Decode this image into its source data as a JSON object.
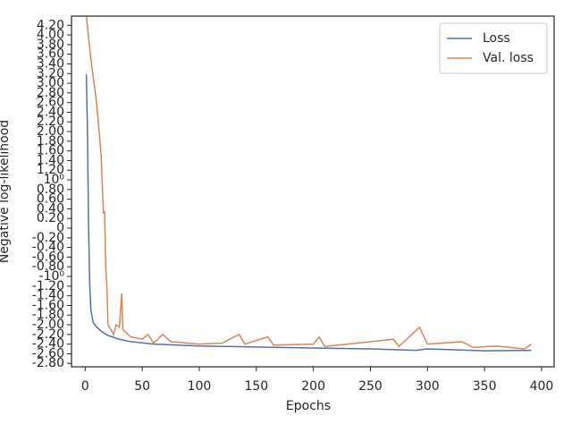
{
  "chart_data": {
    "type": "line",
    "xlabel": "Epochs",
    "ylabel": "Negative log-likelihood",
    "xlim": [
      -12,
      411
    ],
    "xticks": [
      0,
      50,
      100,
      150,
      200,
      250,
      300,
      350,
      400
    ],
    "ylim": [
      -2.87,
      4.39
    ],
    "yticks": [
      {
        "value": -2.8,
        "label": "-2.80"
      },
      {
        "value": -2.6,
        "label": "-2.60"
      },
      {
        "value": -2.4,
        "label": "-2.40"
      },
      {
        "value": -2.2,
        "label": "-2.20"
      },
      {
        "value": -2,
        "label": "-2.00"
      },
      {
        "value": -1.8,
        "label": "-1.80"
      },
      {
        "value": -1.6,
        "label": "-1.60"
      },
      {
        "value": -1.4,
        "label": "-1.40"
      },
      {
        "value": -1.2,
        "label": "-1.20"
      },
      {
        "value": -1,
        "label": "-10⁰"
      },
      {
        "value": -0.8,
        "label": "-0.80"
      },
      {
        "value": -0.6,
        "label": "-0.60"
      },
      {
        "value": -0.4,
        "label": "-0.40"
      },
      {
        "value": -0.2,
        "label": "-0.20"
      },
      0,
      {
        "value": 0.2,
        "label": "0.20"
      },
      {
        "value": 0.4,
        "label": "0.40"
      },
      {
        "value": 0.6,
        "label": "0.60"
      },
      {
        "value": 0.8,
        "label": "0.80"
      },
      {
        "value": 1,
        "label": "10⁰"
      },
      {
        "value": 1.2,
        "label": "1.20"
      },
      {
        "value": 1.4,
        "label": "1.40"
      },
      {
        "value": 1.6,
        "label": "1.60"
      },
      {
        "value": 1.8,
        "label": "1.80"
      },
      {
        "value": 2,
        "label": "2.00"
      },
      {
        "value": 2.2,
        "label": "2.20"
      },
      {
        "value": 2.4,
        "label": "2.40"
      },
      {
        "value": 2.6,
        "label": "2.60"
      },
      {
        "value": 2.8,
        "label": "2.80"
      },
      {
        "value": 3,
        "label": "3.00"
      },
      {
        "value": 3.2,
        "label": "3.20"
      },
      {
        "value": 3.4,
        "label": "3.40"
      },
      {
        "value": 3.6,
        "label": "3.60"
      },
      {
        "value": 3.8,
        "label": "3.80"
      },
      {
        "value": 4,
        "label": "4.00"
      },
      {
        "value": 4.2,
        "label": "4.20"
      }
    ],
    "legend": "upper right",
    "grid": false,
    "series": [
      {
        "name": "Loss",
        "color": "#4c72b0",
        "x": [
          1,
          2,
          3,
          4,
          5,
          7,
          10,
          15,
          20,
          30,
          40,
          60,
          100,
          150,
          200,
          250,
          290,
          300,
          350,
          391
        ],
        "values": [
          3.19,
          2.0,
          0.0,
          -1.2,
          -1.7,
          -1.95,
          -2.05,
          -2.15,
          -2.22,
          -2.3,
          -2.35,
          -2.4,
          -2.44,
          -2.46,
          -2.48,
          -2.5,
          -2.53,
          -2.5,
          -2.54,
          -2.53
        ]
      },
      {
        "name": "Val. loss",
        "color": "#dd8452",
        "x": [
          1,
          5,
          10,
          14,
          16,
          17,
          18,
          19,
          20,
          25,
          27,
          30,
          32,
          33,
          40,
          50,
          55,
          60,
          68,
          75,
          100,
          120,
          135,
          140,
          160,
          165,
          200,
          205,
          210,
          270,
          275,
          293,
          300,
          330,
          340,
          360,
          385,
          391
        ],
        "values": [
          4.39,
          3.5,
          2.6,
          1.5,
          0.3,
          0.35,
          -0.8,
          -1.2,
          -2.0,
          -2.2,
          -2.0,
          -2.05,
          -1.35,
          -2.1,
          -2.25,
          -2.3,
          -2.2,
          -2.38,
          -2.2,
          -2.35,
          -2.4,
          -2.38,
          -2.2,
          -2.4,
          -2.25,
          -2.42,
          -2.4,
          -2.25,
          -2.45,
          -2.3,
          -2.45,
          -2.05,
          -2.4,
          -2.35,
          -2.47,
          -2.44,
          -2.5,
          -2.4
        ]
      }
    ]
  }
}
